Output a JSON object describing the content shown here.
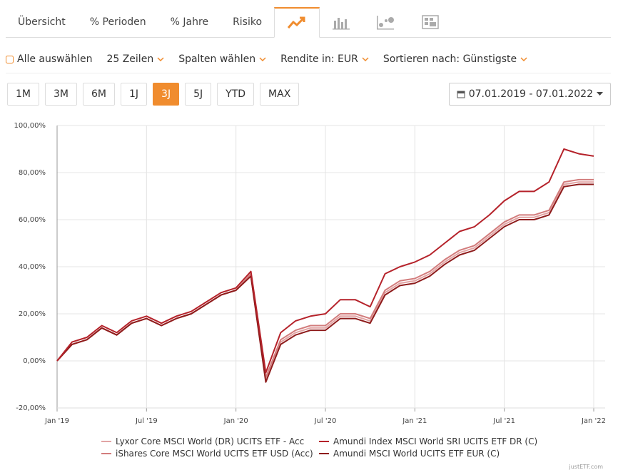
{
  "tabs": [
    "Übersicht",
    "% Perioden",
    "% Jahre",
    "Risiko"
  ],
  "toolbar": {
    "select_all": "Alle auswählen",
    "rows": "25 Zeilen",
    "columns": "Spalten wählen",
    "currency": "Rendite in: EUR",
    "sort": "Sortieren nach: Günstigste"
  },
  "periods": [
    "1M",
    "3M",
    "6M",
    "1J",
    "3J",
    "5J",
    "YTD",
    "MAX"
  ],
  "active_period": "3J",
  "date_range": "07.01.2019 - 07.01.2022",
  "watermark": "justETF.com",
  "chart_data": {
    "type": "line",
    "x": [
      "2019-01",
      "2019-02",
      "2019-03",
      "2019-04",
      "2019-05",
      "2019-06",
      "2019-07",
      "2019-08",
      "2019-09",
      "2019-10",
      "2019-11",
      "2019-12",
      "2020-01",
      "2020-02",
      "2020-03",
      "2020-04",
      "2020-05",
      "2020-06",
      "2020-07",
      "2020-08",
      "2020-09",
      "2020-10",
      "2020-11",
      "2020-12",
      "2021-01",
      "2021-02",
      "2021-03",
      "2021-04",
      "2021-05",
      "2021-06",
      "2021-07",
      "2021-08",
      "2021-09",
      "2021-10",
      "2021-11",
      "2021-12",
      "2022-01"
    ],
    "xlim": [
      "2019-01",
      "2022-01"
    ],
    "xticks": [
      {
        "value": "2019-01",
        "label": "Jan '19"
      },
      {
        "value": "2019-07",
        "label": "Jul '19"
      },
      {
        "value": "2020-01",
        "label": "Jan '20"
      },
      {
        "value": "2020-07",
        "label": "Jul '20"
      },
      {
        "value": "2021-01",
        "label": "Jan '21"
      },
      {
        "value": "2021-07",
        "label": "Jul '21"
      },
      {
        "value": "2022-01",
        "label": "Jan '22"
      }
    ],
    "ylim": [
      -20,
      100
    ],
    "yticks": [
      {
        "value": -20,
        "label": "-20,00%"
      },
      {
        "value": 0,
        "label": "0,00%"
      },
      {
        "value": 20,
        "label": "20,00%"
      },
      {
        "value": 40,
        "label": "40,00%"
      },
      {
        "value": 60,
        "label": "60,00%"
      },
      {
        "value": 80,
        "label": "80,00%"
      },
      {
        "value": 100,
        "label": "100,00%"
      }
    ],
    "grid": true,
    "series": [
      {
        "name": "Lyxor Core MSCI World (DR) UCITS ETF - Acc",
        "color": "#e2a4a4",
        "values": [
          0,
          7,
          9,
          14,
          11,
          16,
          18,
          15,
          18,
          20,
          24,
          28,
          30,
          36,
          -8,
          8,
          12,
          14,
          14,
          19,
          19,
          17,
          29,
          33,
          34,
          37,
          42,
          46,
          48,
          53,
          58,
          61,
          61,
          63,
          75,
          76,
          76
        ]
      },
      {
        "name": "Amundi Index MSCI World SRI UCITS ETF DR (C)",
        "color": "#b5222a",
        "values": [
          0,
          8,
          10,
          15,
          12,
          17,
          19,
          16,
          19,
          21,
          25,
          29,
          31,
          38,
          -5,
          12,
          17,
          19,
          20,
          26,
          26,
          23,
          37,
          40,
          42,
          45,
          50,
          55,
          57,
          62,
          68,
          72,
          72,
          76,
          90,
          88,
          87
        ]
      },
      {
        "name": "iShares Core MSCI World UCITS ETF USD (Acc)",
        "color": "#d27c7c",
        "values": [
          0,
          7,
          9,
          14,
          11,
          16,
          18,
          15,
          18,
          20,
          24,
          28,
          30,
          37,
          -7,
          9,
          13,
          15,
          15,
          20,
          20,
          18,
          30,
          34,
          35,
          38,
          43,
          47,
          49,
          54,
          59,
          62,
          62,
          64,
          76,
          77,
          77
        ]
      },
      {
        "name": "Amundi MSCI World UCITS ETF EUR (C)",
        "color": "#8e1c1c",
        "values": [
          0,
          7,
          9,
          14,
          11,
          16,
          18,
          15,
          18,
          20,
          24,
          28,
          30,
          36,
          -9,
          7,
          11,
          13,
          13,
          18,
          18,
          16,
          28,
          32,
          33,
          36,
          41,
          45,
          47,
          52,
          57,
          60,
          60,
          62,
          74,
          75,
          75
        ]
      }
    ]
  }
}
